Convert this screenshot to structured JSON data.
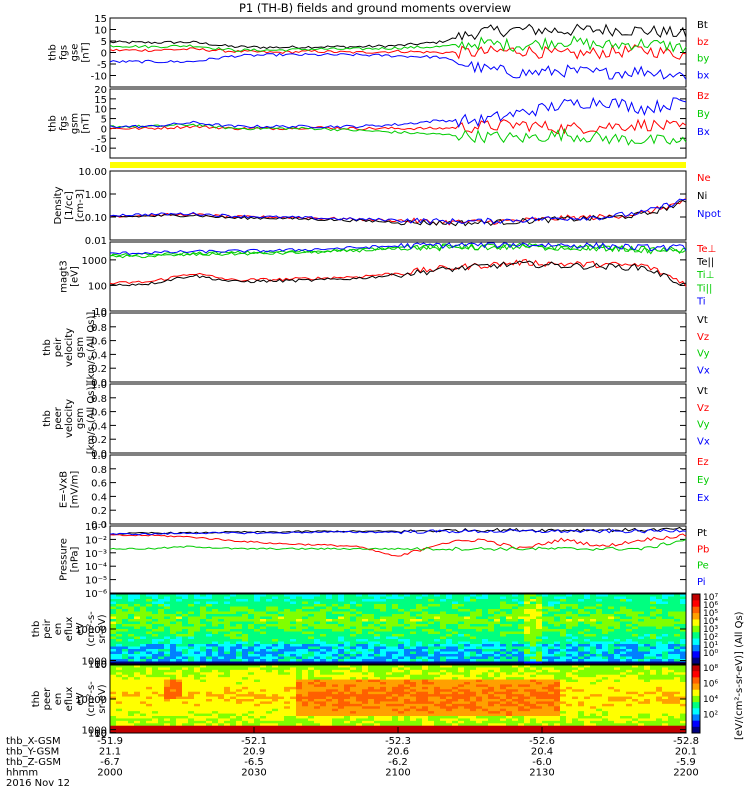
{
  "title": "P1 (TH-B) fields and ground moments overview",
  "chart_data": [
    {
      "id": "fgs-gse",
      "type": "line",
      "ylabel_lines": [
        "thb",
        "fgs",
        "gse",
        "[nT]"
      ],
      "ylim": [
        -15,
        15
      ],
      "yticks": [
        "15",
        "10",
        "5",
        "0",
        "-5",
        "-10"
      ],
      "yticks_values": [
        15,
        10,
        5,
        0,
        -5,
        -10
      ],
      "series": [
        {
          "name": "Bt",
          "color": "#000000",
          "levels": [
            4.5,
            4.3,
            4.5,
            2.5,
            2.2,
            2.5,
            2.5,
            3.0,
            4.5,
            9,
            10,
            9.5,
            10,
            9.5,
            8
          ]
        },
        {
          "name": "bz",
          "color": "#ff0000",
          "levels": [
            1,
            1,
            1.5,
            0.5,
            0,
            0.5,
            0,
            0.5,
            0,
            0,
            1,
            -1,
            0,
            1,
            -1
          ]
        },
        {
          "name": "by",
          "color": "#00cc00",
          "levels": [
            3,
            2.5,
            3,
            1,
            1,
            1.5,
            1.5,
            2,
            2.5,
            4,
            3,
            5,
            3,
            4,
            2
          ]
        },
        {
          "name": "bx",
          "color": "#0000ff",
          "levels": [
            -4,
            -4,
            -4,
            -1.5,
            -1,
            -1,
            -1,
            -1.5,
            -2,
            -7,
            -9,
            -8,
            -9,
            -8,
            -10
          ]
        }
      ]
    },
    {
      "id": "fgs-gsm",
      "type": "line",
      "ylabel_lines": [
        "thb",
        "fgs",
        "gsm",
        "[nT]"
      ],
      "ylim": [
        -15,
        20
      ],
      "yticks": [
        "20",
        "15",
        "10",
        "5",
        "0",
        "-5",
        "-10"
      ],
      "yticks_values": [
        20,
        15,
        10,
        5,
        0,
        -5,
        -10
      ],
      "series": [
        {
          "name": "Bz",
          "color": "#ff0000",
          "levels": [
            0,
            0,
            1,
            0,
            0,
            0.5,
            0,
            0,
            0,
            1,
            2,
            0,
            1,
            2,
            0
          ]
        },
        {
          "name": "By",
          "color": "#00cc00",
          "levels": [
            1,
            1,
            2,
            0,
            0,
            0,
            -1,
            -2,
            -3,
            -4,
            -5,
            -3,
            -5,
            -6,
            -7
          ]
        },
        {
          "name": "Bx",
          "color": "#0000ff",
          "levels": [
            1,
            1,
            3,
            1,
            1,
            1,
            1,
            2,
            4,
            4,
            8,
            12,
            14,
            10,
            14
          ]
        }
      ]
    },
    {
      "id": "density",
      "type": "line",
      "log": true,
      "ylabel_lines": [
        "Density",
        "[1/cc]",
        "[cm-3]"
      ],
      "ylim": [
        0.01,
        10
      ],
      "yticks": [
        "10.00",
        "1.00",
        "0.10",
        "0.01"
      ],
      "yticks_values": [
        10,
        1,
        0.1,
        0.01
      ],
      "series": [
        {
          "name": "Ne",
          "color": "#ff0000",
          "levels": [
            0.11,
            0.12,
            0.13,
            0.1,
            0.1,
            0.09,
            0.08,
            0.07,
            0.06,
            0.06,
            0.07,
            0.09,
            0.1,
            0.15,
            0.5
          ]
        },
        {
          "name": "Ni",
          "color": "#000000",
          "levels": [
            0.1,
            0.11,
            0.12,
            0.09,
            0.09,
            0.08,
            0.07,
            0.06,
            0.055,
            0.055,
            0.065,
            0.08,
            0.09,
            0.13,
            0.45
          ]
        },
        {
          "name": "Npot",
          "color": "#0000ff",
          "levels": [
            0.12,
            0.13,
            0.14,
            0.11,
            0.1,
            0.09,
            0.08,
            0.075,
            0.065,
            0.065,
            0.075,
            0.09,
            0.1,
            0.16,
            0.6
          ]
        }
      ]
    },
    {
      "id": "temperature",
      "type": "line",
      "log": true,
      "ylabel_lines": [
        "magt3",
        "[eV]"
      ],
      "ylim": [
        10,
        5000
      ],
      "yticks": [
        "1000",
        "100",
        "10"
      ],
      "yticks_values": [
        1000,
        100,
        10
      ],
      "series": [
        {
          "name": "Te⊥",
          "color": "#ff0000",
          "levels": [
            120,
            140,
            300,
            160,
            170,
            190,
            220,
            300,
            450,
            600,
            800,
            700,
            650,
            600,
            120
          ]
        },
        {
          "name": "Te||",
          "color": "#000000",
          "levels": [
            100,
            120,
            250,
            140,
            150,
            160,
            190,
            260,
            400,
            550,
            700,
            600,
            550,
            500,
            100
          ]
        },
        {
          "name": "Ti⊥",
          "color": "#00cc00",
          "levels": [
            1500,
            1600,
            1800,
            1900,
            2000,
            2200,
            2500,
            3000,
            3200,
            3300,
            3400,
            3200,
            3000,
            2500,
            2500
          ]
        },
        {
          "name": "Ti||",
          "color": "#00cc00",
          "levels": [
            1300,
            1400,
            1600,
            1700,
            1800,
            2000,
            2300,
            2800,
            3000,
            3100,
            3200,
            3000,
            2800,
            2300,
            2300
          ]
        },
        {
          "name": "Ti",
          "color": "#0000ff",
          "levels": [
            1800,
            1900,
            2100,
            2200,
            2300,
            2600,
            3000,
            3500,
            3800,
            3900,
            4000,
            3800,
            3500,
            3000,
            3000
          ]
        }
      ]
    },
    {
      "id": "peir-velocity",
      "type": "line",
      "ylabel_lines": [
        "thb",
        "peir",
        "velocity",
        "gsm",
        "[km/s (All Qs)]"
      ],
      "ylim": [
        0,
        1
      ],
      "yticks": [
        "1.0",
        "0.8",
        "0.6",
        "0.4",
        "0.2",
        "0.0"
      ],
      "yticks_values": [
        1,
        0.8,
        0.6,
        0.4,
        0.2,
        0
      ],
      "series": [
        {
          "name": "Vt",
          "color": "#000000",
          "levels": []
        },
        {
          "name": "Vz",
          "color": "#ff0000",
          "levels": []
        },
        {
          "name": "Vy",
          "color": "#00cc00",
          "levels": []
        },
        {
          "name": "Vx",
          "color": "#0000ff",
          "levels": []
        }
      ]
    },
    {
      "id": "peer-velocity",
      "type": "line",
      "ylabel_lines": [
        "thb",
        "peer",
        "velocity",
        "gsm",
        "[km/s (All Qs)]"
      ],
      "ylim": [
        0,
        1
      ],
      "yticks": [
        "1.0",
        "0.8",
        "0.6",
        "0.4",
        "0.2",
        "0.0"
      ],
      "yticks_values": [
        1,
        0.8,
        0.6,
        0.4,
        0.2,
        0
      ],
      "series": [
        {
          "name": "Vt",
          "color": "#000000",
          "levels": []
        },
        {
          "name": "Vz",
          "color": "#ff0000",
          "levels": []
        },
        {
          "name": "Vy",
          "color": "#00cc00",
          "levels": []
        },
        {
          "name": "Vx",
          "color": "#0000ff",
          "levels": []
        }
      ]
    },
    {
      "id": "efield",
      "type": "line",
      "ylabel_lines": [
        "E=-VxB",
        "[mV/m]"
      ],
      "ylim": [
        0,
        1
      ],
      "yticks": [
        "1.0",
        "0.8",
        "0.6",
        "0.4",
        "0.2",
        "0.0"
      ],
      "yticks_values": [
        1,
        0.8,
        0.6,
        0.4,
        0.2,
        0
      ],
      "series": [
        {
          "name": "Ez",
          "color": "#ff0000",
          "levels": []
        },
        {
          "name": "Ey",
          "color": "#00cc00",
          "levels": []
        },
        {
          "name": "Ex",
          "color": "#0000ff",
          "levels": []
        }
      ]
    },
    {
      "id": "pressure",
      "type": "line",
      "log": true,
      "ylabel_lines": [
        "Pressure",
        "[nPa]"
      ],
      "ylim": [
        1e-06,
        0.1
      ],
      "yticks": [
        "10⁻¹",
        "10⁻²",
        "10⁻³",
        "10⁻⁴",
        "10⁻⁵",
        "10⁻⁶"
      ],
      "yticks_values": [
        0.1,
        0.01,
        0.001,
        0.0001,
        1e-05,
        1e-06
      ],
      "series": [
        {
          "name": "Pt",
          "color": "#000000",
          "levels": [
            0.025,
            0.03,
            0.03,
            0.035,
            0.035,
            0.04,
            0.04,
            0.04,
            0.045,
            0.05,
            0.05,
            0.05,
            0.05,
            0.05,
            0.06
          ]
        },
        {
          "name": "Pb",
          "color": "#ff0000",
          "levels": [
            0.02,
            0.02,
            0.015,
            0.008,
            0.005,
            0.004,
            0.003,
            0.0005,
            0.005,
            0.01,
            0.002,
            0.01,
            0.003,
            0.01,
            0.02
          ]
        },
        {
          "name": "Pe",
          "color": "#00cc00",
          "levels": [
            0.002,
            0.002,
            0.003,
            0.002,
            0.002,
            0.002,
            0.002,
            0.002,
            0.002,
            0.002,
            0.002,
            0.002,
            0.002,
            0.002,
            0.01
          ]
        },
        {
          "name": "Pi",
          "color": "#0000ff",
          "levels": [
            0.025,
            0.025,
            0.03,
            0.03,
            0.03,
            0.035,
            0.035,
            0.035,
            0.04,
            0.04,
            0.04,
            0.04,
            0.04,
            0.04,
            0.05
          ]
        }
      ]
    },
    {
      "id": "peir-en-eflux",
      "type": "heatmap",
      "ylabel_lines": [
        "thb",
        "peir",
        "en",
        "eflux",
        "eV",
        "(cm²-s-",
        "sr-eV)"
      ],
      "ylim": [
        5,
        20000
      ],
      "yticks": [
        "10000",
        "1000",
        "100",
        "10"
      ],
      "yticks_values": [
        10000,
        1000,
        100,
        10
      ]
    },
    {
      "id": "peer-en-eflux",
      "type": "heatmap",
      "ylabel_lines": [
        "thb",
        "peer",
        "en",
        "eflux",
        "eV",
        "(cm²-s-",
        "sr-eV)"
      ],
      "ylim": [
        5,
        20000
      ],
      "yticks": [
        "10000",
        "1000",
        "100",
        "10"
      ],
      "yticks_values": [
        10000,
        1000,
        100,
        10
      ]
    }
  ],
  "colorbar": {
    "ticks": [
      "10⁷",
      "10⁶",
      "10⁵",
      "10⁴",
      "10³",
      "10²",
      "10¹",
      "10⁰"
    ],
    "ticks_lower": [
      "10⁸",
      "10⁶",
      "10⁴",
      "10²"
    ],
    "label": "[eV/(cm²-s-sr-eV)] (All Qs)"
  },
  "x_axis": {
    "rows": [
      {
        "name": "thb_X-GSM",
        "values": [
          "-51.9",
          "-52.1",
          "-52.3",
          "-52.6",
          "-52.8"
        ]
      },
      {
        "name": "thb_Y-GSM",
        "values": [
          "21.1",
          "20.9",
          "20.6",
          "20.4",
          "20.1"
        ]
      },
      {
        "name": "thb_Z-GSM",
        "values": [
          "-6.7",
          "-6.5",
          "-6.2",
          "-6.0",
          "-5.9"
        ]
      },
      {
        "name": "hhmm",
        "values": [
          "2000",
          "2030",
          "2100",
          "2130",
          "2200"
        ]
      }
    ],
    "date": "2016 Nov 12"
  },
  "colors": {
    "yellow_bar": "#ffff00"
  }
}
